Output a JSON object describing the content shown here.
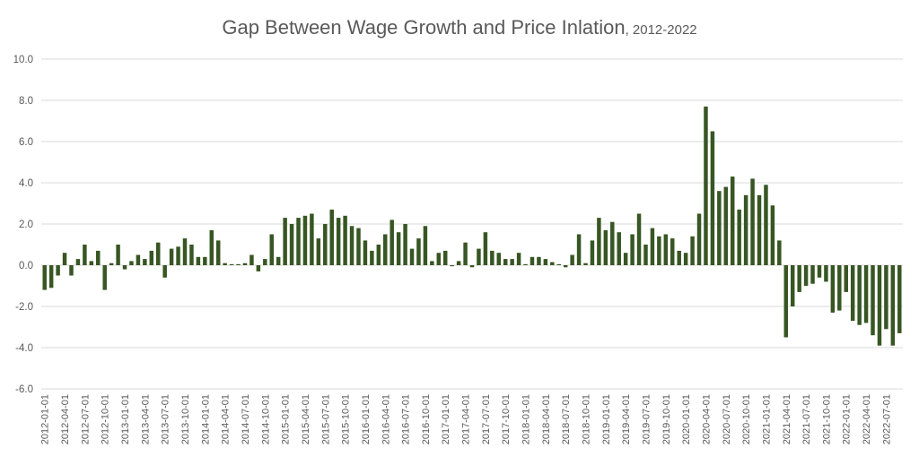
{
  "chart_data": {
    "type": "bar",
    "title": "Gap Between Wage Growth and Price Inlation",
    "subtitle": ", 2012-2022",
    "xlabel": "",
    "ylabel": "",
    "ylim": [
      -6,
      10
    ],
    "yticks": [
      "10.0",
      "8.0",
      "6.0",
      "4.0",
      "2.0",
      "0.0",
      "-2.0",
      "-4.0",
      "-6.0"
    ],
    "ytick_values": [
      10,
      8,
      6,
      4,
      2,
      0,
      -2,
      -4,
      -6
    ],
    "grid": true,
    "bar_color": "#375623",
    "x_tick_labels": [
      "2012-01-01",
      "2012-04-01",
      "2012-07-01",
      "2012-10-01",
      "2013-01-01",
      "2013-04-01",
      "2013-07-01",
      "2013-10-01",
      "2014-01-01",
      "2014-04-01",
      "2014-07-01",
      "2014-10-01",
      "2015-01-01",
      "2015-04-01",
      "2015-07-01",
      "2015-10-01",
      "2016-01-01",
      "2016-04-01",
      "2016-07-01",
      "2016-10-01",
      "2017-01-01",
      "2017-04-01",
      "2017-07-01",
      "2017-10-01",
      "2018-01-01",
      "2018-04-01",
      "2018-07-01",
      "2018-10-01",
      "2019-01-01",
      "2019-04-01",
      "2019-07-01",
      "2019-10-01",
      "2020-01-01",
      "2020-04-01",
      "2020-07-01",
      "2020-10-01",
      "2021-01-01",
      "2021-04-01",
      "2021-07-01",
      "2021-10-01",
      "2022-01-01",
      "2022-04-01",
      "2022-07-01"
    ],
    "x_start": "2012-01",
    "values": [
      -1.2,
      -1.1,
      -0.5,
      0.6,
      -0.5,
      0.3,
      1.0,
      0.2,
      0.7,
      -1.2,
      0.1,
      1.0,
      -0.2,
      0.2,
      0.5,
      0.3,
      0.7,
      1.1,
      -0.6,
      0.8,
      0.9,
      1.3,
      1.0,
      0.4,
      0.4,
      1.7,
      1.2,
      0.1,
      0.05,
      0.05,
      0.1,
      0.5,
      -0.3,
      0.3,
      1.5,
      0.4,
      2.3,
      2.0,
      2.3,
      2.4,
      2.5,
      1.3,
      2.0,
      2.7,
      2.3,
      2.4,
      1.9,
      1.8,
      1.2,
      0.7,
      1.0,
      1.5,
      2.2,
      1.6,
      2.0,
      0.8,
      1.3,
      1.9,
      0.2,
      0.6,
      0.7,
      -0.05,
      0.2,
      1.1,
      -0.1,
      0.8,
      1.6,
      0.7,
      0.6,
      0.3,
      0.3,
      0.6,
      0.05,
      0.4,
      0.4,
      0.3,
      0.15,
      0.05,
      -0.1,
      0.5,
      1.5,
      0.1,
      1.2,
      2.3,
      1.7,
      2.1,
      1.6,
      0.6,
      1.5,
      2.5,
      1.0,
      1.8,
      1.4,
      1.5,
      1.3,
      0.7,
      0.6,
      1.4,
      2.5,
      7.7,
      6.5,
      3.6,
      3.8,
      4.3,
      2.7,
      3.4,
      4.2,
      3.4,
      3.9,
      2.9,
      1.2,
      -3.5,
      -2.0,
      -1.3,
      -1.0,
      -0.9,
      -0.6,
      -0.8,
      -2.3,
      -2.2,
      -1.3,
      -2.7,
      -2.9,
      -2.8,
      -3.4,
      -3.9,
      -3.1,
      -3.9,
      -3.3
    ]
  }
}
